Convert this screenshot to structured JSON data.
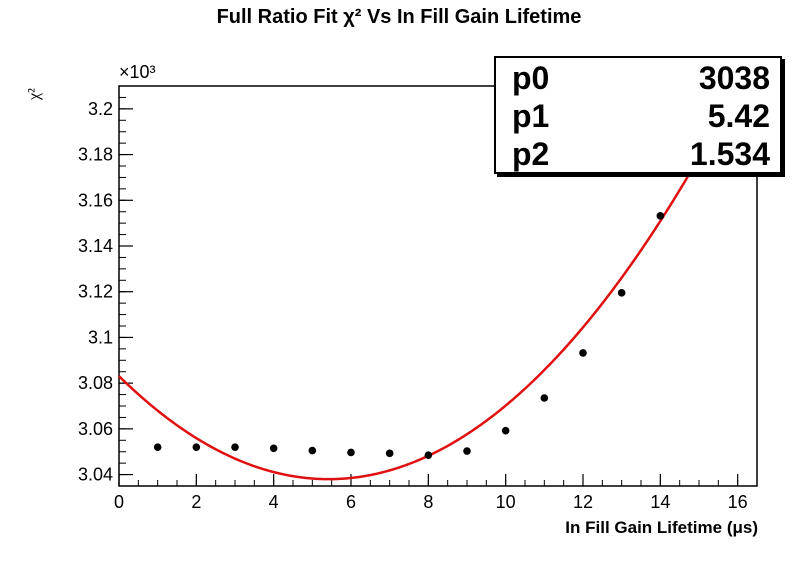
{
  "title": "Full Ratio Fit χ² Vs In Fill Gain Lifetime",
  "chart_data": {
    "type": "scatter",
    "title": "Full Ratio Fit χ² Vs In Fill Gain Lifetime",
    "xlabel": "In Fill Gain Lifetime (μs)",
    "ylabel": "χ²",
    "multiplier": "×10³",
    "xlim": [
      0,
      16.5
    ],
    "ylim": [
      3.035,
      3.21
    ],
    "xticks": [
      0,
      2,
      4,
      6,
      8,
      10,
      12,
      14,
      16
    ],
    "yticks": [
      3.04,
      3.06,
      3.08,
      3.1,
      3.12,
      3.14,
      3.16,
      3.18,
      3.2
    ],
    "ytick_labels": [
      "3.04",
      "3.06",
      "3.08",
      "3.1",
      "3.12",
      "3.14",
      "3.16",
      "3.18",
      "3.2"
    ],
    "series": [
      {
        "type": "scatter",
        "x": [
          1,
          2,
          3,
          4,
          5,
          6,
          7,
          8,
          9,
          10,
          11,
          12,
          13,
          14
        ],
        "y": [
          3.052,
          3.052,
          3.052,
          3.0515,
          3.0505,
          3.0497,
          3.0493,
          3.0485,
          3.0503,
          3.0592,
          3.0735,
          3.0932,
          3.1195,
          3.1532
        ],
        "color": "#000000"
      },
      {
        "type": "line",
        "fit": "p0 + p2·(x − p1)² (×10⁻³)",
        "x0": 0,
        "x1": 16.5,
        "p0": 3038,
        "p1": 5.42,
        "p2": 1.534,
        "color": "#e01010"
      }
    ],
    "stats": [
      {
        "name": "p0",
        "value": "3038"
      },
      {
        "name": "p1",
        "value": "5.42"
      },
      {
        "name": "p2",
        "value": "1.534"
      }
    ]
  }
}
